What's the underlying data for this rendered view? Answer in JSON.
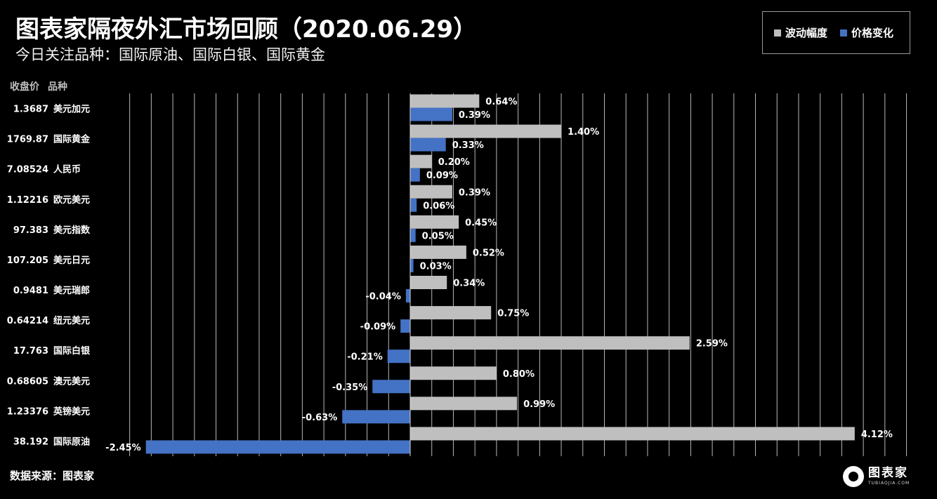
{
  "header": {
    "title": "图表家隔夜外汇市场回顾（2020.06.29）",
    "subtitle": "今日关注品种：国际原油、国际白银、国际黄金"
  },
  "columns": {
    "price_label": "收盘价",
    "name_label": "品种"
  },
  "legend": {
    "items": [
      {
        "label": "波动幅度",
        "color": "#bfbfbf"
      },
      {
        "label": "价格变化",
        "color": "#4472c4"
      }
    ]
  },
  "footer": {
    "source": "数据来源：图表家",
    "logo_cn": "图表家",
    "logo_en": "TUBIAOJIA.COM"
  },
  "chart_data": {
    "type": "bar",
    "orientation": "horizontal",
    "grid": true,
    "legend_position": "top-right",
    "xlim": [
      -3.0,
      4.6
    ],
    "rows": [
      {
        "price": "1.3687",
        "name": "美元加元",
        "amplitude": 0.64,
        "amplitude_label": "0.64%",
        "change": 0.39,
        "change_label": "0.39%"
      },
      {
        "price": "1769.87",
        "name": "国际黄金",
        "amplitude": 1.4,
        "amplitude_label": "1.40%",
        "change": 0.33,
        "change_label": "0.33%"
      },
      {
        "price": "7.08524",
        "name": "人民币",
        "amplitude": 0.2,
        "amplitude_label": "0.20%",
        "change": 0.09,
        "change_label": "0.09%"
      },
      {
        "price": "1.12216",
        "name": "欧元美元",
        "amplitude": 0.39,
        "amplitude_label": "0.39%",
        "change": 0.06,
        "change_label": "0.06%"
      },
      {
        "price": "97.383",
        "name": "美元指数",
        "amplitude": 0.45,
        "amplitude_label": "0.45%",
        "change": 0.05,
        "change_label": "0.05%"
      },
      {
        "price": "107.205",
        "name": "美元日元",
        "amplitude": 0.52,
        "amplitude_label": "0.52%",
        "change": 0.03,
        "change_label": "0.03%"
      },
      {
        "price": "0.9481",
        "name": "美元瑞郎",
        "amplitude": 0.34,
        "amplitude_label": "0.34%",
        "change": -0.04,
        "change_label": "-0.04%"
      },
      {
        "price": "0.64214",
        "name": "纽元美元",
        "amplitude": 0.75,
        "amplitude_label": "0.75%",
        "change": -0.09,
        "change_label": "-0.09%"
      },
      {
        "price": "17.763",
        "name": "国际白银",
        "amplitude": 2.59,
        "amplitude_label": "2.59%",
        "change": -0.21,
        "change_label": "-0.21%"
      },
      {
        "price": "0.68605",
        "name": "澳元美元",
        "amplitude": 0.8,
        "amplitude_label": "0.80%",
        "change": -0.35,
        "change_label": "-0.35%"
      },
      {
        "price": "1.23376",
        "name": "英镑美元",
        "amplitude": 0.99,
        "amplitude_label": "0.99%",
        "change": -0.63,
        "change_label": "-0.63%"
      },
      {
        "price": "38.192",
        "name": "国际原油",
        "amplitude": 4.12,
        "amplitude_label": "4.12%",
        "change": -2.45,
        "change_label": "-2.45%"
      }
    ]
  }
}
